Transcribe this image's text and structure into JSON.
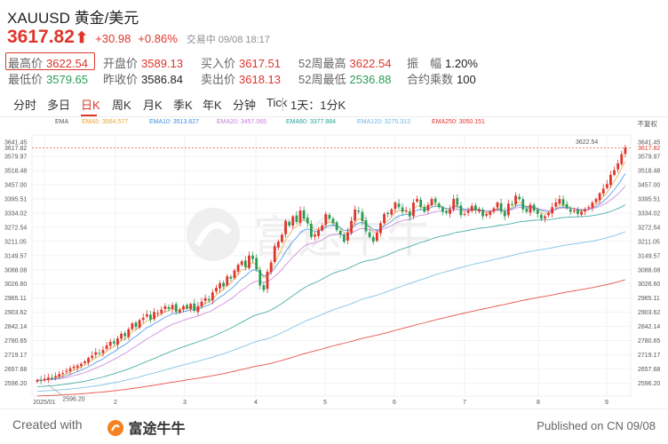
{
  "header": {
    "symbol_title": "XAUUSD 黄金/美元",
    "price": "3617.82",
    "arrow": "⬆",
    "change": "+30.98",
    "change_pct": "+0.86%",
    "status": "交易中 09/08 18:17"
  },
  "stats": [
    {
      "label": "最高价",
      "value": "3622.54",
      "color": "red"
    },
    {
      "label": "开盘价",
      "value": "3589.13",
      "color": "red"
    },
    {
      "label": "买入价",
      "value": "3617.51",
      "color": "red"
    },
    {
      "label": "52周最高",
      "value": "3622.54",
      "color": "red"
    },
    {
      "label": "振　幅",
      "value": "1.20%",
      "color": "dark"
    },
    {
      "label": "最低价",
      "value": "3579.65",
      "color": "green"
    },
    {
      "label": "昨收价",
      "value": "3586.84",
      "color": "dark"
    },
    {
      "label": "卖出价",
      "value": "3618.13",
      "color": "red"
    },
    {
      "label": "52周最低",
      "value": "2536.88",
      "color": "green"
    },
    {
      "label": "合约乘数",
      "value": "100",
      "color": "dark"
    }
  ],
  "tabs": [
    "分时",
    "多日",
    "日K",
    "周K",
    "月K",
    "季K",
    "年K",
    "分钟",
    "Tick",
    "1天：1分K"
  ],
  "active_tab": "日K",
  "ema_legend": {
    "title": "EMA",
    "items": [
      {
        "label": "EMA5: 3564.577",
        "color": "#e6a23c"
      },
      {
        "label": "EMA10: 3513.627",
        "color": "#3a8ee6"
      },
      {
        "label": "EMA20: 3457.065",
        "color": "#c77dd8"
      },
      {
        "label": "EMA60: 3377.884",
        "color": "#2aa198"
      },
      {
        "label": "EMA120: 3275.313",
        "color": "#6bb7e0"
      },
      {
        "label": "EMA250: 3050.151",
        "color": "#e0352b"
      }
    ],
    "fq_label": "不复权"
  },
  "chart_data": {
    "type": "candlestick",
    "ylim": [
      2540,
      3650
    ],
    "y_ticks": [
      "3641.45",
      "3617.82",
      "3579.97",
      "3518.48",
      "3457.00",
      "3395.51",
      "3334.02",
      "3272.54",
      "3211.05",
      "3149.57",
      "3088.08",
      "3026.60",
      "2965.11",
      "2903.62",
      "2842.14",
      "2780.65",
      "2719.17",
      "2657.68",
      "2596.20"
    ],
    "x_ticks": [
      "2025/01",
      "2",
      "3",
      "4",
      "5",
      "6",
      "7",
      "8",
      "9"
    ],
    "high_label": "3622.54",
    "low_label": "2596.20",
    "watermark": "富途牛牛",
    "closes": [
      2610,
      2605,
      2615,
      2620,
      2618,
      2628,
      2635,
      2640,
      2650,
      2660,
      2668,
      2672,
      2680,
      2690,
      2705,
      2715,
      2730,
      2725,
      2740,
      2760,
      2775,
      2768,
      2790,
      2810,
      2800,
      2830,
      2855,
      2840,
      2870,
      2880,
      2895,
      2872,
      2905,
      2900,
      2915,
      2930,
      2918,
      2935,
      2905,
      2915,
      2930,
      2920,
      2940,
      2910,
      2930,
      2950,
      2965,
      2955,
      2990,
      3010,
      3030,
      3015,
      3060,
      3050,
      3085,
      3110,
      3125,
      3100,
      3150,
      3135,
      3090,
      3020,
      3000,
      3080,
      3120,
      3190,
      3210,
      3240,
      3300,
      3280,
      3320,
      3295,
      3345,
      3310,
      3290,
      3230,
      3240,
      3260,
      3280,
      3330,
      3310,
      3290,
      3260,
      3240,
      3210,
      3250,
      3300,
      3350,
      3340,
      3300,
      3255,
      3230,
      3210,
      3250,
      3290,
      3330,
      3330,
      3350,
      3380,
      3360,
      3340,
      3345,
      3320,
      3380,
      3395,
      3360,
      3340,
      3370,
      3395,
      3380,
      3360,
      3340,
      3335,
      3350,
      3395,
      3370,
      3325,
      3330,
      3345,
      3365,
      3345,
      3350,
      3320,
      3330,
      3340,
      3355,
      3380,
      3340,
      3320,
      3375,
      3370,
      3410,
      3395,
      3350,
      3340,
      3370,
      3345,
      3330,
      3310,
      3320,
      3335,
      3360,
      3380,
      3395,
      3370,
      3355,
      3340,
      3345,
      3330,
      3340,
      3350,
      3360,
      3380,
      3395,
      3420,
      3440,
      3460,
      3500,
      3520,
      3550,
      3590,
      3618
    ]
  },
  "footer": {
    "created_with": "Created with",
    "brand": "富途牛牛",
    "published": "Published on CN 09/08"
  }
}
